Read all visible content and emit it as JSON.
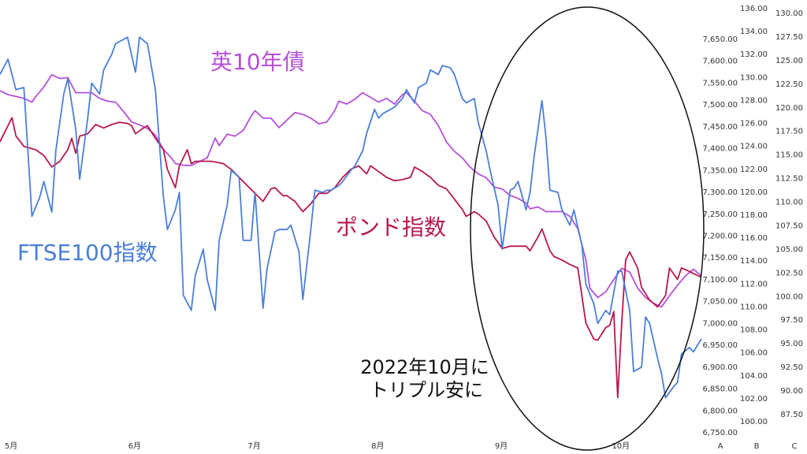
{
  "chart_data": {
    "type": "line",
    "annotations": [
      "2022年10月に",
      "トリプル安に"
    ],
    "axis_names": [
      "A",
      "B",
      "C"
    ],
    "xlim": [
      -2,
      174
    ],
    "xticks": [
      {
        "value": 0,
        "label": "5月"
      },
      {
        "value": 31,
        "label": "6月"
      },
      {
        "value": 61,
        "label": "7月"
      },
      {
        "value": 92,
        "label": "8月"
      },
      {
        "value": 123,
        "label": "9月"
      },
      {
        "value": 153,
        "label": "10月"
      }
    ],
    "ylim": [
      6750,
      7650
    ],
    "yticks": [
      {
        "value": 6750,
        "label": "6,750.00"
      },
      {
        "value": 6800,
        "label": "6,800.00"
      },
      {
        "value": 6850,
        "label": "6,850.00"
      },
      {
        "value": 6900,
        "label": "6,900.00"
      },
      {
        "value": 6950,
        "label": "6,950.00"
      },
      {
        "value": 7000,
        "label": "7,000.00"
      },
      {
        "value": 7050,
        "label": "7,050.00"
      },
      {
        "value": 7100,
        "label": "7,100.00"
      },
      {
        "value": 7150,
        "label": "7,150.00"
      },
      {
        "value": 7200,
        "label": "7,200.00"
      },
      {
        "value": 7250,
        "label": "7,250.00"
      },
      {
        "value": 7300,
        "label": "7,300.00"
      },
      {
        "value": 7350,
        "label": "7,350.00"
      },
      {
        "value": 7400,
        "label": "7,400.00"
      },
      {
        "value": 7450,
        "label": "7,450.00"
      },
      {
        "value": 7500,
        "label": "7,500.00"
      },
      {
        "value": 7550,
        "label": "7,550.00"
      },
      {
        "value": 7600,
        "label": "7,600.00"
      },
      {
        "value": 7650,
        "label": "7,650.00"
      }
    ],
    "y2lim": [
      100,
      136
    ],
    "y2ticks": [
      {
        "value": 100,
        "label": "100.00"
      },
      {
        "value": 102,
        "label": "102.00"
      },
      {
        "value": 104,
        "label": "104.00"
      },
      {
        "value": 106,
        "label": "106.00"
      },
      {
        "value": 108,
        "label": "108.00"
      },
      {
        "value": 110,
        "label": "110.00"
      },
      {
        "value": 112,
        "label": "112.00"
      },
      {
        "value": 114,
        "label": "114.00"
      },
      {
        "value": 116,
        "label": "116.00"
      },
      {
        "value": 118,
        "label": "118.00"
      },
      {
        "value": 120,
        "label": "120.00"
      },
      {
        "value": 122,
        "label": "122.00"
      },
      {
        "value": 124,
        "label": "124.00"
      },
      {
        "value": 126,
        "label": "126.00"
      },
      {
        "value": 128,
        "label": "128.00"
      },
      {
        "value": 130,
        "label": "130.00"
      },
      {
        "value": 132,
        "label": "132.00"
      },
      {
        "value": 134,
        "label": "134.00"
      },
      {
        "value": 136,
        "label": "136.00"
      }
    ],
    "y3lim": [
      87.5,
      130
    ],
    "y3ticks": [
      {
        "value": 87.5,
        "label": "87.50"
      },
      {
        "value": 90,
        "label": "90.00"
      },
      {
        "value": 92.5,
        "label": "92.50"
      },
      {
        "value": 95,
        "label": "95.00"
      },
      {
        "value": 97.5,
        "label": "97.50"
      },
      {
        "value": 100,
        "label": "100.00"
      },
      {
        "value": 102.5,
        "label": "102.50"
      },
      {
        "value": 105,
        "label": "105.00"
      },
      {
        "value": 107.5,
        "label": "107.50"
      },
      {
        "value": 110,
        "label": "110.00"
      },
      {
        "value": 112.5,
        "label": "112.50"
      },
      {
        "value": 115,
        "label": "115.00"
      },
      {
        "value": 117.5,
        "label": "117.50"
      },
      {
        "value": 120,
        "label": "120.00"
      },
      {
        "value": 122.5,
        "label": "122.50"
      },
      {
        "value": 125,
        "label": "125.00"
      },
      {
        "value": 127.5,
        "label": "127.50"
      },
      {
        "value": 130,
        "label": "130.00"
      }
    ],
    "series": [
      {
        "name": "FTSE100指数",
        "color": "#4a7fd9",
        "axis": "y",
        "x": [
          -2,
          0,
          2,
          4,
          5,
          6,
          8,
          9,
          11,
          12,
          14,
          15,
          17,
          18,
          20,
          21,
          23,
          24,
          26,
          27,
          30,
          32,
          33,
          35,
          37,
          39,
          40,
          42,
          43,
          44,
          46,
          47,
          49,
          50,
          52,
          53,
          55,
          56,
          58,
          59,
          61,
          62,
          64,
          65,
          67,
          68,
          70,
          71,
          73,
          74,
          76,
          77,
          79,
          80,
          81,
          83,
          84,
          86,
          87,
          89,
          90,
          92,
          93,
          94,
          96,
          97,
          99,
          100,
          102,
          103,
          105,
          106,
          108,
          109,
          111,
          112,
          114,
          115,
          117,
          118,
          120,
          121,
          123,
          124,
          126,
          127,
          128,
          130,
          131,
          132,
          134,
          135,
          136,
          138,
          139,
          141,
          142,
          144,
          145,
          147,
          148,
          150,
          151,
          153,
          154,
          156,
          157,
          159,
          160,
          161,
          163,
          164,
          165,
          167,
          168,
          169,
          171,
          172,
          174
        ],
        "values": [
          7570,
          7605,
          7535,
          7540,
          7395,
          7245,
          7290,
          7325,
          7255,
          7395,
          7525,
          7560,
          7445,
          7330,
          7470,
          7550,
          7525,
          7580,
          7615,
          7640,
          7655,
          7575,
          7655,
          7640,
          7535,
          7290,
          7215,
          7260,
          7300,
          7065,
          7030,
          7110,
          7170,
          7100,
          7030,
          7190,
          7270,
          7350,
          7335,
          7190,
          7190,
          7300,
          7035,
          7125,
          7210,
          7215,
          7215,
          7225,
          7165,
          7055,
          7215,
          7305,
          7300,
          7305,
          7305,
          7315,
          7325,
          7350,
          7360,
          7395,
          7435,
          7490,
          7470,
          7480,
          7490,
          7495,
          7515,
          7535,
          7505,
          7540,
          7550,
          7580,
          7570,
          7590,
          7585,
          7570,
          7515,
          7505,
          7515,
          7460,
          7395,
          7350,
          7270,
          7170,
          7305,
          7310,
          7325,
          7260,
          7300,
          7380,
          7510,
          7425,
          7305,
          7300,
          7260,
          7225,
          7260,
          7180,
          7090,
          7045,
          7000,
          7030,
          7020,
          7120,
          7120,
          7030,
          6890,
          6900,
          7015,
          7000,
          6920,
          6885,
          6830,
          6855,
          6865,
          6930,
          6945,
          6935,
          6965
        ]
      },
      {
        "name": "英10年債",
        "color": "#b650d9",
        "axis": "y3",
        "x": [
          -2,
          0,
          2,
          4,
          6,
          7,
          9,
          11,
          13,
          15,
          17,
          19,
          21,
          23,
          25,
          27,
          29,
          31,
          33,
          35,
          37,
          39,
          41,
          42,
          44,
          46,
          48,
          50,
          52,
          53,
          55,
          57,
          59,
          61,
          62,
          64,
          66,
          68,
          70,
          72,
          74,
          76,
          78,
          80,
          82,
          83,
          85,
          87,
          89,
          91,
          93,
          95,
          97,
          99,
          100,
          102,
          104,
          106,
          108,
          110,
          112,
          114,
          116,
          118,
          120,
          122,
          124,
          126,
          128,
          130,
          131,
          133,
          135,
          137,
          139,
          141,
          143,
          145,
          146,
          148,
          150,
          152,
          154,
          156,
          158,
          160,
          162,
          164,
          166,
          168,
          170,
          172,
          174
        ],
        "values": [
          121.8,
          121.4,
          121.2,
          121.0,
          120.6,
          121.2,
          122.2,
          123.5,
          123.1,
          123.2,
          121.6,
          121.6,
          121.6,
          121.0,
          120.7,
          120.6,
          119.6,
          118.5,
          118.2,
          117.8,
          117.1,
          115.6,
          114.7,
          114.1,
          113.9,
          113.9,
          114.3,
          114.7,
          116.8,
          116.0,
          117.2,
          117.0,
          117.6,
          119.1,
          119.7,
          118.9,
          118.9,
          117.9,
          118.7,
          119.5,
          119.3,
          118.9,
          118.3,
          118.5,
          119.7,
          120.7,
          120.4,
          120.9,
          121.6,
          121.1,
          120.6,
          121.0,
          120.4,
          121.4,
          121.6,
          120.7,
          119.7,
          119.3,
          118.1,
          116.4,
          115.4,
          114.7,
          113.7,
          113.0,
          112.6,
          111.6,
          111.4,
          110.7,
          110.4,
          109.9,
          109.3,
          109.5,
          109.0,
          109.0,
          109.0,
          108.5,
          107.2,
          103.9,
          100.9,
          99.9,
          100.5,
          101.8,
          103.0,
          102.6,
          100.9,
          99.9,
          99.3,
          98.9,
          100.1,
          101.2,
          102.2,
          102.9,
          102.2
        ]
      },
      {
        "name": "ポンド指数",
        "color": "#b8174e",
        "axis": "y2",
        "x": [
          -2,
          0,
          1,
          2,
          4,
          6,
          7,
          9,
          11,
          13,
          15,
          16,
          17,
          18,
          20,
          22,
          24,
          26,
          28,
          30,
          31,
          32,
          34,
          35,
          37,
          39,
          40,
          42,
          43,
          45,
          46,
          47,
          49,
          51,
          54,
          56,
          58,
          60,
          62,
          64,
          66,
          67,
          69,
          70,
          72,
          74,
          76,
          78,
          80,
          82,
          84,
          86,
          88,
          90,
          91,
          93,
          95,
          97,
          99,
          101,
          102,
          104,
          106,
          108,
          110,
          112,
          114,
          115,
          117,
          118,
          120,
          122,
          124,
          126,
          128,
          130,
          131,
          133,
          134,
          136,
          137,
          139,
          141,
          143,
          145,
          147,
          148,
          150,
          151,
          152,
          153,
          154,
          155,
          156,
          158,
          159,
          161,
          163,
          165,
          166,
          168,
          169,
          171,
          172,
          174
        ],
        "values": [
          124.4,
          125.8,
          126.5,
          124.9,
          124.0,
          123.8,
          123.7,
          123.2,
          122.2,
          122.7,
          123.7,
          124.7,
          123.4,
          124.9,
          125.1,
          125.9,
          125.6,
          125.9,
          126.1,
          126.0,
          125.8,
          125.1,
          125.6,
          125.8,
          124.7,
          123.7,
          122.0,
          120.4,
          122.3,
          123.7,
          122.5,
          122.7,
          122.7,
          122.7,
          122.5,
          122.0,
          121.3,
          120.6,
          119.9,
          119.2,
          120.3,
          120.4,
          119.7,
          119.7,
          119.2,
          118.3,
          119.0,
          119.9,
          119.9,
          120.4,
          121.3,
          122.0,
          122.3,
          121.6,
          122.3,
          121.8,
          121.3,
          121.0,
          121.1,
          121.3,
          122.2,
          121.8,
          121.3,
          120.6,
          120.3,
          119.4,
          118.5,
          117.9,
          118.3,
          118.1,
          117.5,
          116.1,
          115.1,
          115.3,
          115.3,
          115.3,
          114.9,
          116.1,
          116.8,
          114.9,
          114.4,
          114.1,
          113.7,
          113.4,
          108.6,
          107.2,
          107.1,
          108.2,
          108.4,
          109.6,
          102.1,
          108.6,
          114.1,
          114.8,
          113.4,
          111.7,
          110.6,
          110.0,
          111.0,
          113.4,
          112.4,
          113.4,
          113.1,
          112.9,
          112.6
        ]
      }
    ]
  }
}
